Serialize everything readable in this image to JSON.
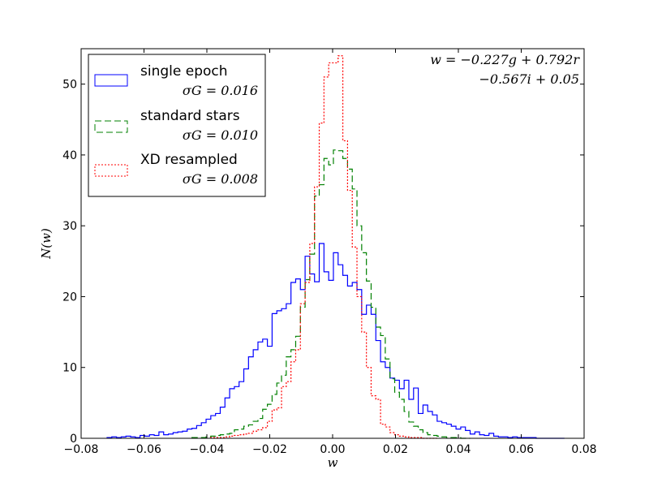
{
  "chart_data": {
    "type": "histogram",
    "xlabel": "w",
    "ylabel": "N(w)",
    "xlim": [
      -0.08,
      0.08
    ],
    "ylim": [
      0,
      55
    ],
    "xticks": [
      -0.08,
      -0.06,
      -0.04,
      -0.02,
      0.0,
      0.02,
      0.04,
      0.06,
      0.08
    ],
    "xtick_labels": [
      "−0.08",
      "−0.06",
      "−0.04",
      "−0.02",
      "0.00",
      "0.02",
      "0.04",
      "0.06",
      "0.08"
    ],
    "yticks": [
      0,
      10,
      20,
      30,
      40,
      50
    ],
    "ytick_labels": [
      "0",
      "10",
      "20",
      "30",
      "40",
      "50"
    ],
    "grid": false,
    "legend_position": "top-left",
    "annotation": {
      "line1": "w = −0.227g + 0.792r",
      "line2": "−0.567i + 0.05"
    },
    "series": [
      {
        "name": "single epoch",
        "sigma_label": "σG = 0.016",
        "color": "#0000ff",
        "dash": "",
        "x": [
          -0.071,
          -0.0695,
          -0.068,
          -0.0665,
          -0.065,
          -0.0635,
          -0.062,
          -0.0605,
          -0.059,
          -0.0575,
          -0.056,
          -0.0545,
          -0.053,
          -0.0515,
          -0.05,
          -0.0485,
          -0.047,
          -0.0455,
          -0.044,
          -0.0425,
          -0.041,
          -0.0395,
          -0.038,
          -0.0365,
          -0.035,
          -0.0335,
          -0.032,
          -0.0305,
          -0.029,
          -0.0275,
          -0.026,
          -0.0245,
          -0.023,
          -0.0215,
          -0.02,
          -0.0185,
          -0.017,
          -0.0155,
          -0.014,
          -0.0125,
          -0.011,
          -0.0095,
          -0.008,
          -0.0065,
          -0.005,
          -0.0035,
          -0.002,
          -0.0005,
          0.001,
          0.0025,
          0.004,
          0.0055,
          0.007,
          0.0085,
          0.01,
          0.0115,
          0.013,
          0.0145,
          0.016,
          0.0175,
          0.019,
          0.0205,
          0.022,
          0.0235,
          0.025,
          0.0265,
          0.028,
          0.0295,
          0.031,
          0.0325,
          0.034,
          0.0355,
          0.037,
          0.0385,
          0.04,
          0.0415,
          0.043,
          0.0445,
          0.046,
          0.0475,
          0.049,
          0.0505,
          0.052,
          0.0535,
          0.055,
          0.0565,
          0.058,
          0.0595,
          0.061,
          0.0625,
          0.064,
          0.0655,
          0.067,
          0.0685,
          0.07,
          0.0715,
          0.073
        ],
        "y": [
          0.1,
          0.2,
          0.1,
          0.2,
          0.3,
          0.2,
          0.1,
          0.4,
          0.3,
          0.5,
          0.4,
          0.9,
          0.5,
          0.6,
          0.8,
          0.9,
          1.0,
          1.3,
          1.4,
          1.8,
          2.2,
          2.7,
          3.2,
          3.5,
          4.4,
          5.7,
          7.0,
          7.3,
          8.0,
          9.8,
          11.5,
          12.5,
          13.6,
          14.0,
          13.0,
          17.6,
          18.0,
          18.3,
          19.0,
          22.0,
          22.5,
          21.0,
          25.7,
          23.2,
          22.1,
          27.5,
          23.5,
          22.3,
          26.2,
          24.5,
          23.0,
          21.5,
          22.0,
          21.0,
          17.5,
          18.8,
          17.5,
          13.8,
          10.8,
          10.0,
          8.5,
          8.2,
          7.0,
          8.2,
          5.5,
          7.1,
          3.5,
          4.7,
          3.8,
          3.3,
          2.4,
          2.2,
          2.0,
          1.7,
          1.3,
          1.6,
          1.1,
          0.6,
          0.9,
          0.5,
          0.4,
          0.7,
          0.3,
          0.2,
          0.2,
          0.1,
          0.2,
          0.1,
          0.1,
          0.1,
          0.1,
          0.0,
          0.0,
          0.0,
          0.0,
          0.0,
          0.0
        ]
      },
      {
        "name": "standard stars",
        "sigma_label": "σG = 0.010",
        "color": "#008000",
        "dash": "8,4",
        "x": [
          -0.044,
          -0.0425,
          -0.041,
          -0.0395,
          -0.038,
          -0.0365,
          -0.035,
          -0.0335,
          -0.032,
          -0.0305,
          -0.029,
          -0.0275,
          -0.026,
          -0.0245,
          -0.023,
          -0.0215,
          -0.02,
          -0.0185,
          -0.017,
          -0.0155,
          -0.014,
          -0.0125,
          -0.011,
          -0.0095,
          -0.008,
          -0.0065,
          -0.005,
          -0.0035,
          -0.002,
          -0.0005,
          0.001,
          0.0025,
          0.004,
          0.0055,
          0.007,
          0.0085,
          0.01,
          0.0115,
          0.013,
          0.0145,
          0.016,
          0.0175,
          0.019,
          0.0205,
          0.022,
          0.0235,
          0.025,
          0.0265,
          0.028,
          0.0295,
          0.031,
          0.0325,
          0.034,
          0.0355,
          0.037,
          0.0385,
          0.04,
          0.0415,
          0.043
        ],
        "y": [
          0.1,
          0.1,
          0.1,
          0.2,
          0.3,
          0.4,
          0.5,
          0.6,
          0.7,
          1.2,
          1.3,
          1.7,
          1.9,
          2.4,
          2.8,
          4.1,
          4.8,
          6.2,
          7.8,
          8.9,
          11.5,
          12.5,
          14.4,
          18.5,
          22.4,
          26.0,
          34.2,
          35.8,
          39.5,
          38.6,
          40.7,
          40.6,
          39.5,
          38.0,
          35.2,
          30.0,
          26.2,
          22.2,
          18.5,
          15.7,
          14.5,
          11.2,
          8.4,
          6.5,
          5.5,
          3.8,
          2.3,
          1.7,
          1.2,
          0.8,
          0.5,
          0.4,
          0.3,
          0.2,
          0.1,
          0.1,
          0.1,
          0.0,
          0.0
        ]
      },
      {
        "name": "XD resampled",
        "sigma_label": "σG = 0.008",
        "color": "#ff0000",
        "dash": "2,2",
        "x": [
          -0.038,
          -0.0365,
          -0.035,
          -0.0335,
          -0.032,
          -0.0305,
          -0.029,
          -0.0275,
          -0.026,
          -0.0245,
          -0.023,
          -0.0215,
          -0.02,
          -0.0185,
          -0.017,
          -0.0155,
          -0.014,
          -0.0125,
          -0.011,
          -0.0095,
          -0.008,
          -0.0065,
          -0.005,
          -0.0035,
          -0.002,
          -0.0005,
          0.001,
          0.0025,
          0.004,
          0.0055,
          0.007,
          0.0085,
          0.01,
          0.0115,
          0.013,
          0.0145,
          0.016,
          0.0175,
          0.019,
          0.0205,
          0.022,
          0.0235,
          0.025,
          0.0265,
          0.028,
          0.0295,
          0.031,
          0.0325
        ],
        "y": [
          0.1,
          0.1,
          0.1,
          0.2,
          0.3,
          0.4,
          0.5,
          0.6,
          0.7,
          1.0,
          1.2,
          1.5,
          2.4,
          4.0,
          4.3,
          7.3,
          8.0,
          10.8,
          12.5,
          19.0,
          22.0,
          27.5,
          35.5,
          44.5,
          51.0,
          53.0,
          53.0,
          54.0,
          42.0,
          35.0,
          27.0,
          20.0,
          15.0,
          10.0,
          6.0,
          5.5,
          2.0,
          1.6,
          0.8,
          0.5,
          0.3,
          0.2,
          0.1,
          0.1,
          0.1,
          0.0,
          0.0,
          0.0
        ]
      }
    ]
  }
}
